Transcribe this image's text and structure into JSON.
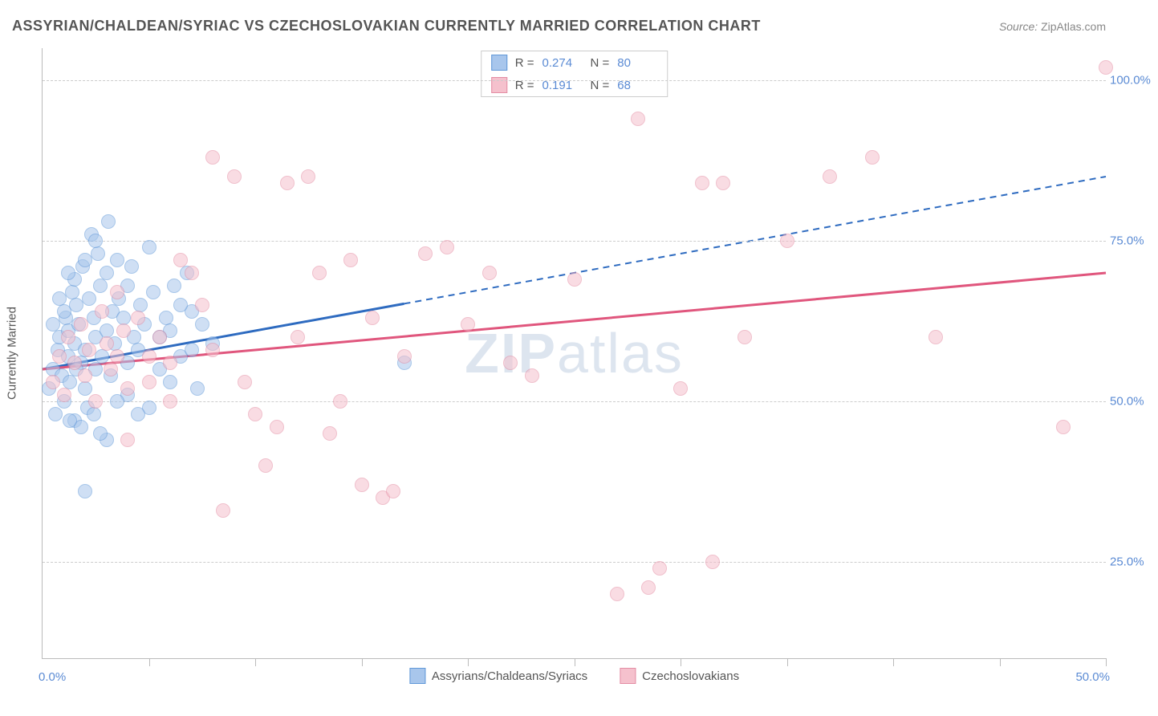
{
  "title": "ASSYRIAN/CHALDEAN/SYRIAC VS CZECHOSLOVAKIAN CURRENTLY MARRIED CORRELATION CHART",
  "source_label": "Source:",
  "source_value": "ZipAtlas.com",
  "watermark": "ZIPatlas",
  "ylabel": "Currently Married",
  "chart": {
    "type": "scatter",
    "xlim": [
      0,
      50
    ],
    "ylim": [
      10,
      105
    ],
    "xticks": [
      0,
      5,
      10,
      15,
      20,
      25,
      30,
      35,
      40,
      45,
      50
    ],
    "xlabel_min": "0.0%",
    "xlabel_max": "50.0%",
    "ygrid": [
      25,
      50,
      75,
      100
    ],
    "ytick_labels": [
      "25.0%",
      "50.0%",
      "75.0%",
      "100.0%"
    ],
    "grid_color": "#cccccc",
    "axis_color": "#bbbbbb",
    "tick_label_color": "#5b8bd4",
    "marker_radius": 9,
    "marker_opacity": 0.55,
    "series": [
      {
        "name": "Assyrians/Chaldeans/Syriacs",
        "R": "0.274",
        "N": "80",
        "fill": "#a8c6ec",
        "stroke": "#6198d8",
        "line_color": "#2e6bc0",
        "line": {
          "x1": 0,
          "y1": 55,
          "x2": 50,
          "y2": 85,
          "solid_until_x": 17
        },
        "points": [
          [
            0.3,
            52
          ],
          [
            0.5,
            55
          ],
          [
            0.6,
            48
          ],
          [
            0.7,
            58
          ],
          [
            0.8,
            60
          ],
          [
            0.9,
            54
          ],
          [
            1.0,
            50
          ],
          [
            1.1,
            63
          ],
          [
            1.2,
            57
          ],
          [
            1.2,
            61
          ],
          [
            1.3,
            53
          ],
          [
            1.4,
            67
          ],
          [
            1.5,
            59
          ],
          [
            1.5,
            47
          ],
          [
            1.6,
            65
          ],
          [
            1.7,
            62
          ],
          [
            1.8,
            56
          ],
          [
            1.9,
            71
          ],
          [
            2.0,
            58
          ],
          [
            2.0,
            52
          ],
          [
            2.1,
            49
          ],
          [
            2.2,
            66
          ],
          [
            2.3,
            76
          ],
          [
            2.4,
            63
          ],
          [
            2.5,
            55
          ],
          [
            2.5,
            60
          ],
          [
            2.6,
            73
          ],
          [
            2.7,
            68
          ],
          [
            2.8,
            57
          ],
          [
            3.0,
            61
          ],
          [
            3.0,
            70
          ],
          [
            3.1,
            78
          ],
          [
            3.2,
            54
          ],
          [
            3.3,
            64
          ],
          [
            3.4,
            59
          ],
          [
            3.5,
            72
          ],
          [
            3.6,
            66
          ],
          [
            3.8,
            63
          ],
          [
            4.0,
            56
          ],
          [
            4.0,
            68
          ],
          [
            4.2,
            71
          ],
          [
            4.3,
            60
          ],
          [
            4.5,
            58
          ],
          [
            4.6,
            65
          ],
          [
            4.8,
            62
          ],
          [
            5.0,
            74
          ],
          [
            5.2,
            67
          ],
          [
            5.5,
            55
          ],
          [
            5.8,
            63
          ],
          [
            6.0,
            61
          ],
          [
            6.2,
            68
          ],
          [
            6.5,
            57
          ],
          [
            6.8,
            70
          ],
          [
            7.0,
            64
          ],
          [
            7.3,
            52
          ],
          [
            3.0,
            44
          ],
          [
            2.7,
            45
          ],
          [
            2.4,
            48
          ],
          [
            1.8,
            46
          ],
          [
            1.3,
            47
          ],
          [
            2.0,
            36
          ],
          [
            4.0,
            51
          ],
          [
            5.0,
            49
          ],
          [
            6.0,
            53
          ],
          [
            7.5,
            62
          ],
          [
            8.0,
            59
          ],
          [
            2.0,
            72
          ],
          [
            2.5,
            75
          ],
          [
            1.5,
            69
          ],
          [
            1.0,
            64
          ],
          [
            0.5,
            62
          ],
          [
            0.8,
            66
          ],
          [
            1.2,
            70
          ],
          [
            1.6,
            55
          ],
          [
            3.5,
            50
          ],
          [
            4.5,
            48
          ],
          [
            5.5,
            60
          ],
          [
            6.5,
            65
          ],
          [
            7.0,
            58
          ],
          [
            17.0,
            56
          ]
        ]
      },
      {
        "name": "Czechoslovakians",
        "R": "0.191",
        "N": "68",
        "fill": "#f5c1cd",
        "stroke": "#e48da4",
        "line_color": "#e0567d",
        "line": {
          "x1": 0,
          "y1": 55,
          "x2": 50,
          "y2": 70,
          "solid_until_x": 50
        },
        "points": [
          [
            0.5,
            53
          ],
          [
            0.8,
            57
          ],
          [
            1.0,
            51
          ],
          [
            1.2,
            60
          ],
          [
            1.5,
            56
          ],
          [
            1.8,
            62
          ],
          [
            2.0,
            54
          ],
          [
            2.2,
            58
          ],
          [
            2.5,
            50
          ],
          [
            2.8,
            64
          ],
          [
            3.0,
            59
          ],
          [
            3.2,
            55
          ],
          [
            3.5,
            67
          ],
          [
            3.8,
            61
          ],
          [
            4.0,
            52
          ],
          [
            4.5,
            63
          ],
          [
            5.0,
            57
          ],
          [
            5.5,
            60
          ],
          [
            6.0,
            56
          ],
          [
            6.5,
            72
          ],
          [
            7.0,
            70
          ],
          [
            7.5,
            65
          ],
          [
            8.0,
            58
          ],
          [
            8.0,
            88
          ],
          [
            8.5,
            33
          ],
          [
            9.0,
            85
          ],
          [
            9.5,
            53
          ],
          [
            10.0,
            48
          ],
          [
            10.5,
            40
          ],
          [
            11.0,
            46
          ],
          [
            11.5,
            84
          ],
          [
            12.0,
            60
          ],
          [
            12.5,
            85
          ],
          [
            13.0,
            70
          ],
          [
            13.5,
            45
          ],
          [
            14.0,
            50
          ],
          [
            14.5,
            72
          ],
          [
            15.0,
            37
          ],
          [
            15.5,
            63
          ],
          [
            16.0,
            35
          ],
          [
            16.5,
            36
          ],
          [
            17.0,
            57
          ],
          [
            18.0,
            73
          ],
          [
            19.0,
            74
          ],
          [
            20.0,
            62
          ],
          [
            21.0,
            70
          ],
          [
            22.0,
            56
          ],
          [
            23.0,
            54
          ],
          [
            25.0,
            69
          ],
          [
            27.0,
            20
          ],
          [
            28.0,
            94
          ],
          [
            28.5,
            21
          ],
          [
            29.0,
            24
          ],
          [
            30.0,
            52
          ],
          [
            31.0,
            84
          ],
          [
            31.5,
            25
          ],
          [
            32.0,
            84
          ],
          [
            33.0,
            60
          ],
          [
            35.0,
            75
          ],
          [
            37.0,
            85
          ],
          [
            39.0,
            88
          ],
          [
            42.0,
            60
          ],
          [
            48.0,
            46
          ],
          [
            50.0,
            102
          ],
          [
            3.5,
            57
          ],
          [
            4.0,
            44
          ],
          [
            5.0,
            53
          ],
          [
            6.0,
            50
          ]
        ]
      }
    ]
  },
  "legend_bottom": [
    "Assyrians/Chaldeans/Syriacs",
    "Czechoslovakians"
  ]
}
